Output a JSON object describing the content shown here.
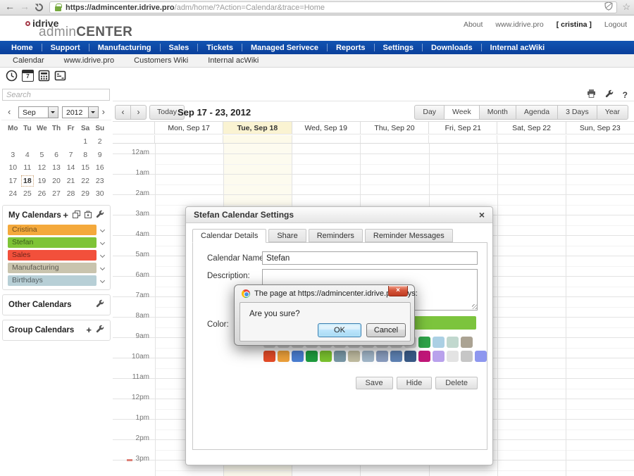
{
  "glyphs": {
    "back": "←",
    "forward": "→",
    "star": "☆",
    "prev": "‹",
    "next": "›",
    "plus": "+",
    "close": "×",
    "help": "?"
  },
  "browser": {
    "url_host": "https://admincenter.idrive.pro",
    "url_path": "/adm/home/?Action=Calendar&trace=Home"
  },
  "header": {
    "logo_brand": "idrive",
    "logo_line2_light": "admin",
    "logo_line2_bold": "CENTER",
    "links": [
      "About",
      "www.idrive.pro",
      "[ cristina ]",
      "Logout"
    ]
  },
  "nav": {
    "items": [
      "Home",
      "Support",
      "Manufacturing",
      "Sales",
      "Tickets",
      "Managed Serivece",
      "Reports",
      "Settings",
      "Downloads",
      "Internal acWiki"
    ]
  },
  "subnav": {
    "items": [
      "Calendar",
      "www.idrive.pro",
      "Customers Wiki",
      "Internal acWiki"
    ]
  },
  "quick_icons": {
    "calendar_day": "7"
  },
  "sidebar": {
    "search_placeholder": "Search",
    "mini_calendar": {
      "month": "Sep",
      "year": "2012",
      "weekdays": [
        "Mo",
        "Tu",
        "We",
        "Th",
        "Fr",
        "Sa",
        "Su"
      ],
      "weeks": [
        [
          "",
          "",
          "",
          "",
          "",
          "1",
          "2"
        ],
        [
          "3",
          "4",
          "5",
          "6",
          "7",
          "8",
          "9"
        ],
        [
          "10",
          "11",
          "12",
          "13",
          "14",
          "15",
          "16"
        ],
        [
          "17",
          "18",
          "19",
          "20",
          "21",
          "22",
          "23"
        ],
        [
          "24",
          "25",
          "26",
          "27",
          "28",
          "29",
          "30"
        ]
      ],
      "selected_day": "18"
    },
    "my_calendars": {
      "title": "My Calendars",
      "items": [
        {
          "name": "Cristina",
          "color": "#F4A93C"
        },
        {
          "name": "Stefan",
          "color": "#7EC437"
        },
        {
          "name": "Sales",
          "color": "#F2503B"
        },
        {
          "name": "Manufacturing",
          "color": "#C9C4AE"
        },
        {
          "name": "Birthdays",
          "color": "#B7CFD6"
        }
      ]
    },
    "other_calendars_title": "Other Calendars",
    "group_calendars_title": "Group Calendars"
  },
  "calendar": {
    "today_label": "Today",
    "range_title": "Sep 17 - 23, 2012",
    "views": [
      "Day",
      "Week",
      "Month",
      "Agenda",
      "3 Days",
      "Year"
    ],
    "active_view": "Week",
    "day_headers": [
      "Mon, Sep 17",
      "Tue, Sep 18",
      "Wed, Sep 19",
      "Thu, Sep 20",
      "Fri, Sep 21",
      "Sat, Sep 22",
      "Sun, Sep 23"
    ],
    "highlighted_day_index": 1,
    "hours": [
      "12am",
      "1am",
      "2am",
      "3am",
      "4am",
      "5am",
      "6am",
      "7am",
      "8am",
      "9am",
      "10am",
      "11am",
      "12pm",
      "1pm",
      "2pm",
      "3pm"
    ]
  },
  "modal": {
    "title": "Stefan Calendar Settings",
    "tabs": [
      "Calendar Details",
      "Share",
      "Reminders",
      "Reminder Messages"
    ],
    "active_tab_index": 0,
    "name_label": "Calendar Name:",
    "name_value": "Stefan",
    "description_label": "Description:",
    "color_label": "Color:",
    "current_color": "#7CC43D",
    "palette_row1": [
      "#D8D8D8",
      "#D8D8D8",
      "#D8D8D8",
      "#D8D8D8",
      "#D8D8D8",
      "#D8D8D8",
      "#D8D8D8",
      "#D8D8D8",
      "#D8D8D8",
      "#D8D8D8",
      "#D8D8D8",
      "#2EA449",
      "#ABD0E4",
      "#C1D8CE",
      "#ABA393"
    ],
    "palette_row2": [
      "#E74C28",
      "#F0A23B",
      "#4A7FD4",
      "#1E9E3E",
      "#7CC52F",
      "#7A99A8",
      "#C2BEA2",
      "#A3B8CB",
      "#8B9EC0",
      "#5F83B5",
      "#3A5B88",
      "#C01778",
      "#B9A1EC",
      "#E3E3E3",
      "#C6C6C6",
      "#8E97EF"
    ],
    "buttons": [
      "Save",
      "Hide",
      "Delete"
    ]
  },
  "confirm_dialog": {
    "title": "The page at https://admincenter.idrive.pro says:",
    "message": "Are you sure?",
    "ok_label": "OK",
    "cancel_label": "Cancel"
  }
}
